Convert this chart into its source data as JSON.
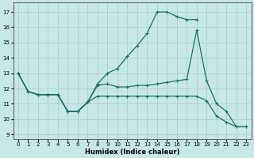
{
  "xlabel": "Humidex (Indice chaleur)",
  "bg_color": "#c8e8e8",
  "grid_color": "#a8d0d0",
  "line_color": "#1a7060",
  "xlim": [
    -0.5,
    23.5
  ],
  "ylim": [
    8.7,
    17.6
  ],
  "xticks": [
    0,
    1,
    2,
    3,
    4,
    5,
    6,
    7,
    8,
    9,
    10,
    11,
    12,
    13,
    14,
    15,
    16,
    17,
    18,
    19,
    20,
    21,
    22,
    23
  ],
  "yticks": [
    9,
    10,
    11,
    12,
    13,
    14,
    15,
    16,
    17
  ],
  "curve1_x": [
    0,
    1,
    2,
    3,
    4,
    5,
    6,
    7,
    8,
    9,
    10,
    11,
    12,
    13,
    14,
    15,
    16,
    17,
    18
  ],
  "curve1_y": [
    13.0,
    11.8,
    11.6,
    11.6,
    11.6,
    10.5,
    10.5,
    11.1,
    12.3,
    13.0,
    13.3,
    14.1,
    14.8,
    15.6,
    17.0,
    17.0,
    16.7,
    16.5,
    16.5
  ],
  "curve2_x": [
    0,
    1,
    2,
    3,
    4,
    5,
    6,
    7,
    8,
    9,
    10,
    11,
    12,
    13,
    14,
    15,
    16,
    17,
    18,
    19,
    20,
    21,
    22,
    23
  ],
  "curve2_y": [
    13.0,
    11.8,
    11.6,
    11.6,
    11.6,
    10.5,
    10.5,
    11.1,
    12.2,
    12.3,
    12.1,
    12.1,
    12.2,
    12.2,
    12.3,
    12.4,
    12.5,
    12.6,
    15.8,
    12.5,
    11.0,
    10.5,
    9.5,
    9.5
  ],
  "curve3_x": [
    0,
    1,
    2,
    3,
    4,
    5,
    6,
    7,
    8,
    9,
    10,
    11,
    12,
    13,
    14,
    15,
    16,
    17,
    18,
    19,
    20,
    21,
    22,
    23
  ],
  "curve3_y": [
    13.0,
    11.8,
    11.6,
    11.6,
    11.6,
    10.5,
    10.5,
    11.1,
    11.5,
    11.5,
    11.5,
    11.5,
    11.5,
    11.5,
    11.5,
    11.5,
    11.5,
    11.5,
    11.5,
    11.2,
    10.2,
    9.8,
    9.5,
    9.5
  ]
}
